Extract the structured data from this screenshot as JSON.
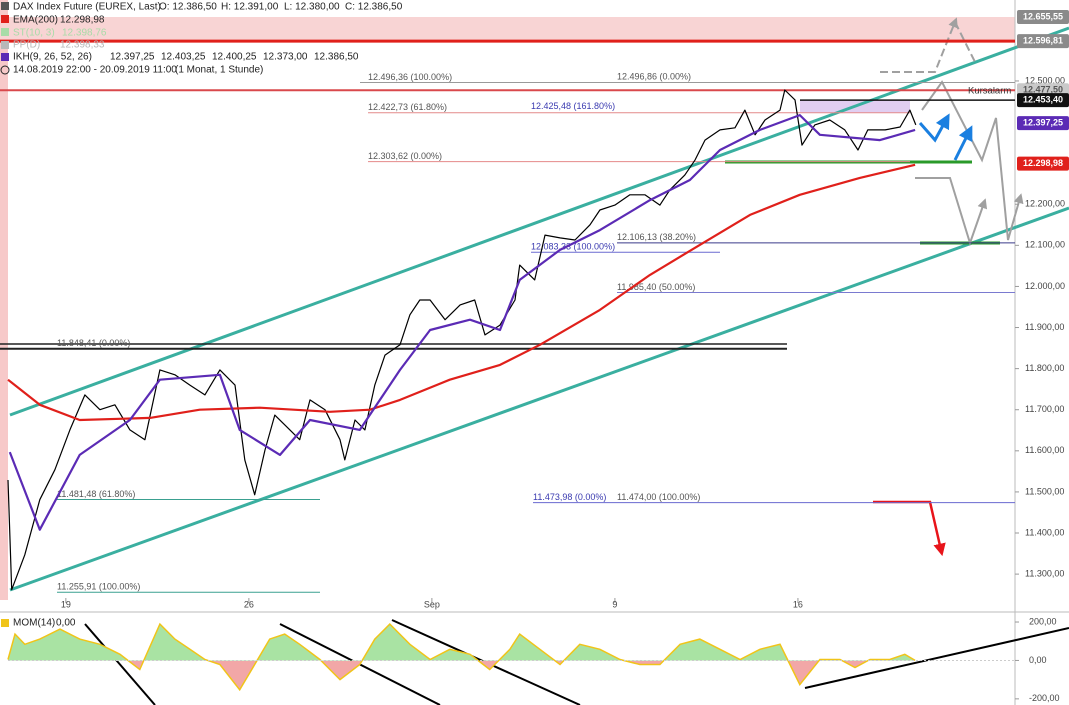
{
  "chart_data": [
    {
      "type": "line",
      "header": {
        "ohlc_labels": [
          "O: 12.386,50",
          "H: 12.391,00",
          "L: 12.380,00",
          "C: 12.386,50"
        ],
        "period": "14.08.2019 22:00 - 20.09.2019 11:00",
        "period_note": "(1 Monat, 1 Stunde)"
      },
      "series": [
        {
          "name": "DAX Index Future (EUREX, Last)",
          "color": "#000000",
          "x": [
            -1.58,
            -1.48,
            -1.12,
            -0.71,
            -0.3,
            0.11,
            0.52,
            0.93,
            1.34,
            1.75,
            2.16,
            2.57,
            2.98,
            3.39,
            3.8,
            4.21,
            4.62,
            4.89,
            5.16,
            5.44,
            5.71,
            6.12,
            6.39,
            6.67,
            7.08,
            7.49,
            7.62,
            7.9,
            8.17,
            8.44,
            8.72,
            9.13,
            9.4,
            9.67,
            9.95,
            10.36,
            10.77,
            11.17,
            11.45,
            11.86,
            12.27,
            12.4,
            12.81,
            13.09,
            13.5,
            13.91,
            14.32,
            14.59,
            15.0,
            15.41,
            15.82,
            16.23,
            16.5,
            16.91,
            17.19,
            17.46,
            17.87,
            18.28,
            18.55,
            18.83,
            19.1,
            19.51,
            19.64,
            19.92,
            20.11,
            20.46,
            20.87,
            21.28,
            21.64,
            21.91,
            22.38,
            22.79,
            23.06,
            23.22
          ],
          "values": [
            11529,
            11262,
            11347,
            11481,
            11554,
            11651,
            11736,
            11700,
            11712,
            11651,
            11627,
            11797,
            11785,
            11760,
            11736,
            11797,
            11760,
            11578,
            11493,
            11602,
            11687,
            11651,
            11627,
            11724,
            11700,
            11627,
            11578,
            11675,
            11651,
            11760,
            11833,
            11858,
            11931,
            11967,
            11967,
            11919,
            11955,
            11967,
            11882,
            11906,
            11967,
            12052,
            12016,
            12125,
            12118,
            12113,
            12150,
            12186,
            12198,
            12223,
            12223,
            12198,
            12235,
            12271,
            12308,
            12356,
            12381,
            12386,
            12429,
            12369,
            12405,
            12429,
            12478,
            12454,
            12344,
            12393,
            12405,
            12381,
            12332,
            12381,
            12381,
            12388,
            12429,
            12393
          ]
        },
        {
          "name": "EMA(200)",
          "color": "#e0201b",
          "legend_labels": [
            "12.298,98"
          ],
          "x": [
            -1.58,
            -0.71,
            0.38,
            2.3,
            3.66,
            5.3,
            7.21,
            8.31,
            9.13,
            10.49,
            11.86,
            12.95,
            14.59,
            15.96,
            17.32,
            18.69,
            20.05,
            21.69,
            23.2
          ],
          "values": [
            11773,
            11712,
            11675,
            11680,
            11700,
            11705,
            11695,
            11700,
            11724,
            11773,
            11809,
            11858,
            11943,
            12028,
            12101,
            12174,
            12223,
            12264,
            12296
          ]
        },
        {
          "name": "IKH(9, 26, 52, 26)",
          "color": "#5b2bb5",
          "legend_labels": [
            "12.397,25",
            "12.403,25",
            "12.400,25",
            "12.373,00",
            "12.386,50"
          ],
          "x": [
            -1.53,
            -0.71,
            0.38,
            1.75,
            2.57,
            4.21,
            4.75,
            5.85,
            6.67,
            8.03,
            8.58,
            9.13,
            9.95,
            11.04,
            11.86,
            12.4,
            13.5,
            14.59,
            15.96,
            17.05,
            17.87,
            18.96,
            20.05,
            20.6,
            22.24,
            23.2
          ],
          "values": [
            11597,
            11408,
            11590,
            11675,
            11773,
            11785,
            11651,
            11590,
            11675,
            11651,
            11724,
            11797,
            11894,
            11919,
            11894,
            12016,
            12089,
            12137,
            12210,
            12259,
            12332,
            12381,
            12417,
            12369,
            12356,
            12381
          ]
        }
      ],
      "indicators": [
        {
          "name": "ST(10, 3)",
          "color": "#a8dca8",
          "legend_labels": [
            "12.398,76"
          ]
        },
        {
          "name": "PP(D)",
          "color": "#b8b8b8",
          "legend_labels": [
            "12.398,33"
          ]
        }
      ],
      "xlim": [
        -1.58,
        25.93
      ],
      "xticks": [
        {
          "value": 0,
          "label": "19"
        },
        {
          "value": 5,
          "label": "26"
        },
        {
          "value": 10,
          "label": "Sep"
        },
        {
          "value": 15,
          "label": "9"
        },
        {
          "value": 20,
          "label": "16"
        }
      ],
      "ylim": [
        11237,
        12697
      ],
      "yticks": [
        {
          "value": 12500,
          "label": "12.500,00"
        },
        {
          "value": 12200,
          "label": "12.200,00"
        },
        {
          "value": 12100,
          "label": "12.100,00"
        },
        {
          "value": 12000,
          "label": "12.000,00"
        },
        {
          "value": 11900,
          "label": "11.900,00"
        },
        {
          "value": 11800,
          "label": "11.800,00"
        },
        {
          "value": 11700,
          "label": "11.700,00"
        },
        {
          "value": 11600,
          "label": "11.600,00"
        },
        {
          "value": 11500,
          "label": "11.500,00"
        },
        {
          "value": 11400,
          "label": "11.400,00"
        },
        {
          "value": 11300,
          "label": "11.300,00"
        }
      ],
      "levels": [
        {
          "value": 12496.36,
          "label": "12.496,36 (100.00%)"
        },
        {
          "value": 12496.86,
          "label": "12.496,86 (0.00%)"
        },
        {
          "value": 12422.73,
          "label": "12.422,73 (61.80%)"
        },
        {
          "value": 12425.48,
          "label": "12.425,48 (161.80%)"
        },
        {
          "value": 12303.62,
          "label": "12.303,62 (0.00%)"
        },
        {
          "value": 12106.13,
          "label": "12.106,13 (38.20%)"
        },
        {
          "value": 12083.33,
          "label": "12.083,33 (100.00%)"
        },
        {
          "value": 11985.4,
          "label": "11.985,40 (50.00%)"
        },
        {
          "value": 11848.41,
          "label": "11.848,41 (0.00%)"
        },
        {
          "value": 11481.48,
          "label": "11.481,48 (61.80%)"
        },
        {
          "value": 11473.98,
          "label": "11.473,98 (0.00%)"
        },
        {
          "value": 11474.0,
          "label": "11.474,00 (100.00%)"
        },
        {
          "value": 11255.91,
          "label": "11.255,91 (100.00%)"
        }
      ],
      "price_labels": [
        {
          "value": 12655.55,
          "label": "12.655,55",
          "color": "#8a8a8a"
        },
        {
          "value": 12596.81,
          "label": "12.596,81",
          "color": "#8a8a8a"
        },
        {
          "value": 12477.5,
          "label": "12.477,50",
          "color": "#c9c9c9"
        },
        {
          "value": 12453.4,
          "label": "12.453,40",
          "color": "#111111"
        },
        {
          "value": 12397.25,
          "label": "12.397,25",
          "color": "#5b2bb5"
        },
        {
          "value": 12298.98,
          "label": "12.298,98",
          "color": "#e0201b"
        }
      ],
      "annotation": "Kursalarm"
    },
    {
      "type": "area",
      "series": [
        {
          "name": "MOM(14)",
          "current_label": "0,00",
          "color": "#f0c419",
          "positive_color": "#a9e3a3",
          "negative_color": "#f2a7a7",
          "x": [
            -1.58,
            -1.39,
            -1.12,
            -0.71,
            -0.16,
            0.38,
            0.93,
            1.48,
            2.02,
            2.57,
            2.98,
            3.39,
            3.8,
            4.21,
            4.75,
            5.16,
            5.57,
            5.98,
            6.39,
            6.94,
            7.49,
            8.03,
            8.44,
            8.85,
            9.4,
            9.95,
            10.49,
            11.04,
            11.58,
            12.13,
            12.4,
            12.95,
            13.5,
            14.04,
            14.59,
            15.14,
            15.68,
            16.23,
            16.78,
            17.32,
            17.87,
            18.42,
            18.96,
            19.51,
            20.05,
            20.6,
            21.15,
            21.56,
            21.97,
            22.51,
            22.92,
            23.2
          ],
          "values": [
            5,
            137,
            84,
            111,
            163,
            111,
            84,
            32,
            -47,
            189,
            111,
            58,
            5,
            -21,
            -153,
            -21,
            111,
            137,
            84,
            5,
            -100,
            -21,
            111,
            189,
            84,
            5,
            58,
            32,
            -47,
            58,
            137,
            58,
            -21,
            84,
            58,
            5,
            -21,
            -21,
            84,
            111,
            58,
            5,
            58,
            84,
            -126,
            5,
            5,
            -37,
            5,
            5,
            32,
            0
          ]
        }
      ],
      "xlim": [
        -1.58,
        25.93
      ],
      "ylim": [
        -232,
        247
      ],
      "yticks": [
        {
          "value": 200,
          "label": "200,00"
        },
        {
          "value": 0,
          "label": "0,00"
        },
        {
          "value": -200,
          "label": "-200,00"
        }
      ]
    }
  ]
}
